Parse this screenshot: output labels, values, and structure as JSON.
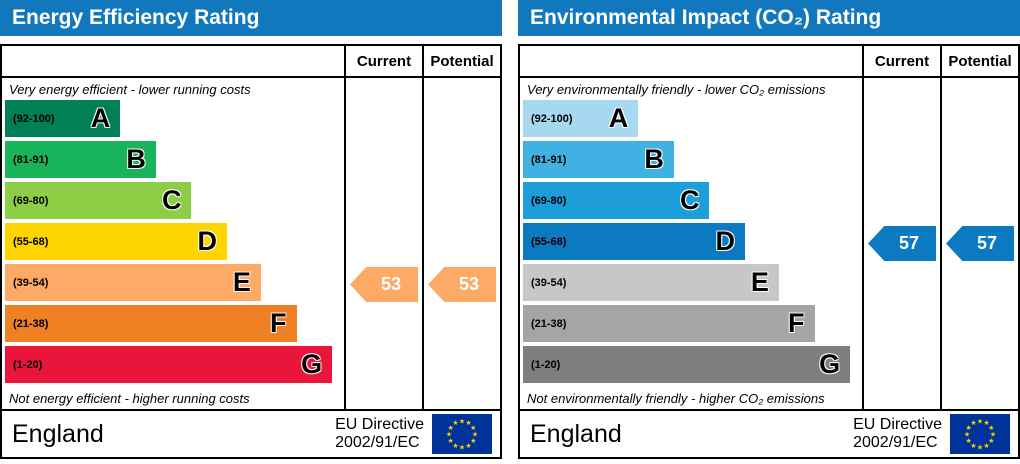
{
  "icons": {
    "star_glyph": "★"
  },
  "colors": {
    "header_bg": "#1278be",
    "flag_bg": "#003399",
    "flag_star": "#ffcc00"
  },
  "chart_data": [
    {
      "type": "bar",
      "title": "Energy Efficiency Rating",
      "categories": [
        "A (92-100)",
        "B (81-91)",
        "C (69-80)",
        "D (55-68)",
        "E (39-54)",
        "F (21-38)",
        "G (1-20)"
      ],
      "band_colors": [
        "#008054",
        "#19b459",
        "#8dce46",
        "#ffd500",
        "#fcaa65",
        "#ef8023",
        "#e9153b"
      ],
      "columns": [
        "Current",
        "Potential"
      ],
      "current": {
        "value": 53,
        "band": "E"
      },
      "potential": {
        "value": 53,
        "band": "E"
      },
      "top_note": "Very energy efficient - lower running costs",
      "bottom_note": "Not energy efficient - higher running costs",
      "footer": "England — EU Directive 2002/91/EC"
    },
    {
      "type": "bar",
      "title": "Environmental Impact (CO₂) Rating",
      "categories": [
        "A (92-100)",
        "B (81-91)",
        "C (69-80)",
        "D (55-68)",
        "E (39-54)",
        "F (21-38)",
        "G (1-20)"
      ],
      "band_colors": [
        "#a6d9ef",
        "#3fb1e3",
        "#1d9ed9",
        "#0c7ac0",
        "#c7c7c7",
        "#a5a5a5",
        "#7e7e7e"
      ],
      "columns": [
        "Current",
        "Potential"
      ],
      "current": {
        "value": 57,
        "band": "D"
      },
      "potential": {
        "value": 57,
        "band": "D"
      },
      "top_note": "Very environmentally friendly - lower CO₂ emissions",
      "bottom_note": "Not environmentally friendly - higher CO₂ emissions",
      "footer": "England — EU Directive 2002/91/EC"
    }
  ],
  "panels": [
    {
      "title": "Energy Efficiency Rating",
      "columns": {
        "current": "Current",
        "potential": "Potential"
      },
      "top_note": "Very energy efficient - lower running costs",
      "bottom_note": "Not energy efficient - higher running costs",
      "bands": [
        {
          "letter": "A",
          "range": "(92-100)",
          "color": "#008054"
        },
        {
          "letter": "B",
          "range": "(81-91)",
          "color": "#19b459"
        },
        {
          "letter": "C",
          "range": "(69-80)",
          "color": "#8dce46"
        },
        {
          "letter": "D",
          "range": "(55-68)",
          "color": "#ffd500"
        },
        {
          "letter": "E",
          "range": "(39-54)",
          "color": "#fcaa65"
        },
        {
          "letter": "F",
          "range": "(21-38)",
          "color": "#ef8023"
        },
        {
          "letter": "G",
          "range": "(1-20)",
          "color": "#e9153b"
        }
      ],
      "current": {
        "value": 53,
        "band_index": 4,
        "color": "#fcaa65"
      },
      "potential": {
        "value": 53,
        "band_index": 4,
        "color": "#fcaa65"
      },
      "footer": {
        "region": "England",
        "directive_line1": "EU Directive",
        "directive_line2": "2002/91/EC"
      }
    },
    {
      "title": "Environmental Impact (CO₂) Rating",
      "columns": {
        "current": "Current",
        "potential": "Potential"
      },
      "top_note": "Very environmentally friendly - lower CO₂ emissions",
      "bottom_note": "Not environmentally friendly - higher CO₂ emissions",
      "bands": [
        {
          "letter": "A",
          "range": "(92-100)",
          "color": "#a6d9ef"
        },
        {
          "letter": "B",
          "range": "(81-91)",
          "color": "#3fb1e3"
        },
        {
          "letter": "C",
          "range": "(69-80)",
          "color": "#1d9ed9"
        },
        {
          "letter": "D",
          "range": "(55-68)",
          "color": "#0c7ac0"
        },
        {
          "letter": "E",
          "range": "(39-54)",
          "color": "#c7c7c7"
        },
        {
          "letter": "F",
          "range": "(21-38)",
          "color": "#a5a5a5"
        },
        {
          "letter": "G",
          "range": "(1-20)",
          "color": "#7e7e7e"
        }
      ],
      "current": {
        "value": 57,
        "band_index": 3,
        "color": "#0c7ac0"
      },
      "potential": {
        "value": 57,
        "band_index": 3,
        "color": "#0c7ac0"
      },
      "footer": {
        "region": "England",
        "directive_line1": "EU Directive",
        "directive_line2": "2002/91/EC"
      }
    }
  ]
}
